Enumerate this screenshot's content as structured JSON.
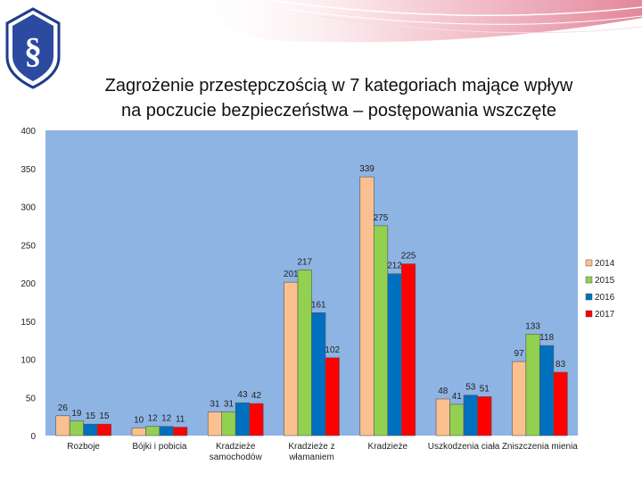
{
  "slide": {
    "logo_symbol": "§"
  },
  "chart_data": {
    "type": "bar",
    "title": "Zagrożenie przestępczością w 7 kategoriach mające wpływ na poczucie bezpieczeństwa – postępowania wszczęte",
    "title_lines": [
      "Zagrożenie przestępczością w 7 kategoriach mające wpływ",
      "na poczucie bezpieczeństwa – postępowania wszczęte"
    ],
    "xlabel": "",
    "ylabel": "",
    "ylim": [
      0,
      400
    ],
    "yticks": [
      0,
      50,
      100,
      150,
      200,
      250,
      300,
      350,
      400
    ],
    "grid": false,
    "legend_position": "right",
    "plot_background": "#8eb4e3",
    "categories": [
      [
        "Rozboje"
      ],
      [
        "Bójki i pobicia"
      ],
      [
        "Kradzieże",
        "samochodów"
      ],
      [
        "Kradzieże z",
        "włamaniem"
      ],
      [
        "Kradzieże"
      ],
      [
        "Uszkodzenia ciała"
      ],
      [
        "Zniszczenia mienia"
      ]
    ],
    "series": [
      {
        "name": "2014",
        "color": "#fac090",
        "values": [
          26,
          10,
          31,
          201,
          339,
          48,
          97
        ]
      },
      {
        "name": "2015",
        "color": "#92d050",
        "values": [
          19,
          12,
          31,
          217,
          275,
          41,
          133
        ]
      },
      {
        "name": "2016",
        "color": "#0070c0",
        "values": [
          15,
          12,
          43,
          161,
          212,
          53,
          118
        ]
      },
      {
        "name": "2017",
        "color": "#ff0000",
        "values": [
          15,
          11,
          42,
          102,
          225,
          51,
          83
        ]
      }
    ]
  }
}
